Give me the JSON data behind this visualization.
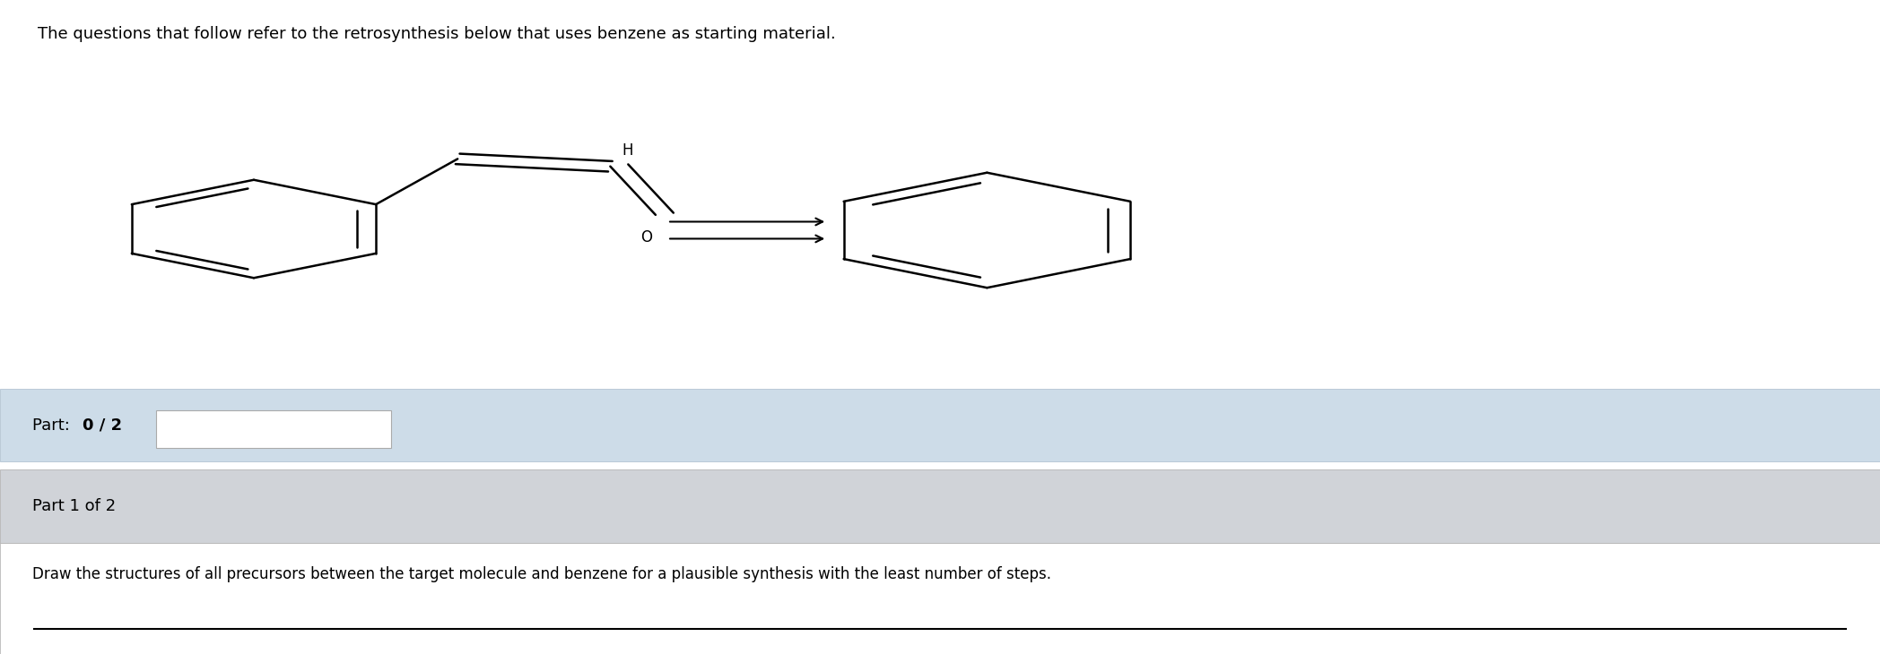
{
  "title_text": "The questions that follow refer to the retrosynthesis below that uses benzene as starting material.",
  "title_fontsize": 13,
  "bg_color": "#ffffff",
  "part_bar1_color": "#cddce8",
  "part_bar2_color": "#d0d3d8",
  "part1_label_normal": "Part: ",
  "part1_label_bold": "0 / 2",
  "part2_text": "Part 1 of 2",
  "part3_text": "Draw the structures of all precursors between the target molecule and benzene for a plausible synthesis with the least number of steps.",
  "line_color": "#000000",
  "line_width": 1.8
}
